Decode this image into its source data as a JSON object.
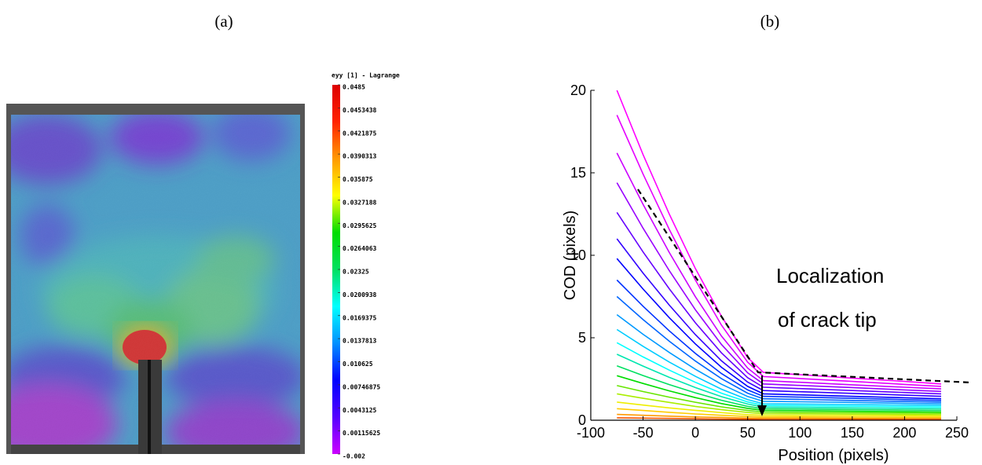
{
  "chart_data": [
    {
      "type": "image",
      "title": "(a)",
      "colorbar": {
        "title": "eyy [1] - Lagrange",
        "clim": [
          -0.002,
          0.0485
        ],
        "colors": [
          "#cc00ff",
          "#5500ff",
          "#0000ff",
          "#0090ff",
          "#00ffff",
          "#00e060",
          "#00dd00",
          "#ffff00",
          "#ff9900",
          "#ff2200",
          "#dd0000"
        ],
        "ticks": [
          0.0485,
          0.0453438,
          0.0421875,
          0.0390313,
          0.035875,
          0.0327188,
          0.0295625,
          0.0264063,
          0.02325,
          0.0200938,
          0.0169375,
          0.0137813,
          0.010625,
          0.00746875,
          0.0043125,
          0.00115625,
          -0.002
        ]
      }
    },
    {
      "type": "line",
      "title": "(b)",
      "xlabel": "Position (pixels)",
      "ylabel": "COD (pixels)",
      "annotations": [
        "Localization",
        "of crack tip"
      ],
      "xlim": [
        -100,
        250
      ],
      "ylim": [
        0,
        20
      ],
      "xticks": [
        -100,
        -50,
        0,
        50,
        100,
        150,
        200,
        250
      ],
      "yticks": [
        0,
        5,
        10,
        15,
        20
      ],
      "x": [
        -75,
        -50,
        -25,
        0,
        25,
        50,
        65,
        100,
        150,
        200,
        235
      ],
      "series": [
        {
          "color": "#ff00ff",
          "values": [
            20,
            16.1,
            12.5,
            9.2,
            6.3,
            3.8,
            2.9,
            2.76,
            2.55,
            2.35,
            2.2
          ]
        },
        {
          "color": "#e600ff",
          "values": [
            18.5,
            14.92,
            11.57,
            8.5,
            5.76,
            3.52,
            2.65,
            2.53,
            2.35,
            2.17,
            2.05
          ]
        },
        {
          "color": "#cc00ff",
          "values": [
            16.2,
            13.08,
            10.17,
            7.49,
            5.1,
            3.16,
            2.4,
            2.3,
            2.15,
            2.0,
            1.9
          ]
        },
        {
          "color": "#9900ff",
          "values": [
            14.4,
            11.64,
            9.07,
            6.7,
            4.59,
            2.87,
            2.2,
            2.11,
            1.98,
            1.84,
            1.75
          ]
        },
        {
          "color": "#6600ff",
          "values": [
            12.6,
            10.2,
            7.97,
            5.91,
            4.08,
            2.58,
            2,
            1.92,
            1.8,
            1.68,
            1.6
          ]
        },
        {
          "color": "#3300ff",
          "values": [
            11,
            8.92,
            6.98,
            5.19,
            3.6,
            2.31,
            1.8,
            1.73,
            1.63,
            1.52,
            1.45
          ]
        },
        {
          "color": "#0000ff",
          "values": [
            9.8,
            7.95,
            6.22,
            4.63,
            3.21,
            2.05,
            1.6,
            1.54,
            1.45,
            1.36,
            1.3
          ]
        },
        {
          "color": "#0033ff",
          "values": [
            8.5,
            6.91,
            5.42,
            4.05,
            2.83,
            1.84,
            1.45,
            1.4,
            1.33,
            1.25,
            1.2
          ]
        },
        {
          "color": "#0066ff",
          "values": [
            7.5,
            6.1,
            4.79,
            3.59,
            2.52,
            1.64,
            1.3,
            1.26,
            1.2,
            1.14,
            1.1
          ]
        },
        {
          "color": "#0099ff",
          "values": [
            6.4,
            5.21,
            4.11,
            3.09,
            2.18,
            1.44,
            1.15,
            1.12,
            1.08,
            1.03,
            1.0
          ]
        },
        {
          "color": "#00ccff",
          "values": [
            5.5,
            4.48,
            3.53,
            2.66,
            1.88,
            1.25,
            1,
            0.98,
            0.95,
            0.92,
            0.9
          ]
        },
        {
          "color": "#00ffff",
          "values": [
            4.7,
            3.84,
            3.04,
            2.3,
            1.64,
            1.11,
            0.9,
            0.88,
            0.85,
            0.82,
            0.8
          ]
        },
        {
          "color": "#00e6b0",
          "values": [
            4.0,
            3.28,
            2.6,
            1.98,
            1.43,
            0.98,
            0.8,
            0.78,
            0.75,
            0.72,
            0.7
          ]
        },
        {
          "color": "#00e060",
          "values": [
            3.3,
            2.71,
            2.16,
            1.66,
            1.21,
            0.84,
            0.7,
            0.68,
            0.65,
            0.62,
            0.6
          ]
        },
        {
          "color": "#00dd00",
          "values": [
            2.7,
            2.23,
            1.78,
            1.37,
            1.01,
            0.72,
            0.6,
            0.58,
            0.55,
            0.52,
            0.5
          ]
        },
        {
          "color": "#66e600",
          "values": [
            2.1,
            1.74,
            1.4,
            1.09,
            0.81,
            0.59,
            0.5,
            0.48,
            0.46,
            0.44,
            0.42
          ]
        },
        {
          "color": "#aaee00",
          "values": [
            1.6,
            1.33,
            1.08,
            0.84,
            0.64,
            0.47,
            0.4,
            0.39,
            0.37,
            0.35,
            0.34
          ]
        },
        {
          "color": "#eeee00",
          "values": [
            1.1,
            0.92,
            0.75,
            0.6,
            0.46,
            0.34,
            0.3,
            0.29,
            0.28,
            0.27,
            0.26
          ]
        },
        {
          "color": "#ffcc00",
          "values": [
            0.7,
            0.59,
            0.48,
            0.38,
            0.3,
            0.23,
            0.2,
            0.2,
            0.19,
            0.18,
            0.18
          ]
        },
        {
          "color": "#ff9900",
          "values": [
            0.35,
            0.3,
            0.25,
            0.2,
            0.17,
            0.13,
            0.12,
            0.12,
            0.11,
            0.1,
            0.1
          ]
        },
        {
          "color": "#ff5500",
          "values": [
            0.15,
            0.13,
            0.11,
            0.09,
            0.07,
            0.06,
            0.05,
            0.05,
            0.05,
            0.05,
            0.05
          ]
        }
      ]
    }
  ]
}
